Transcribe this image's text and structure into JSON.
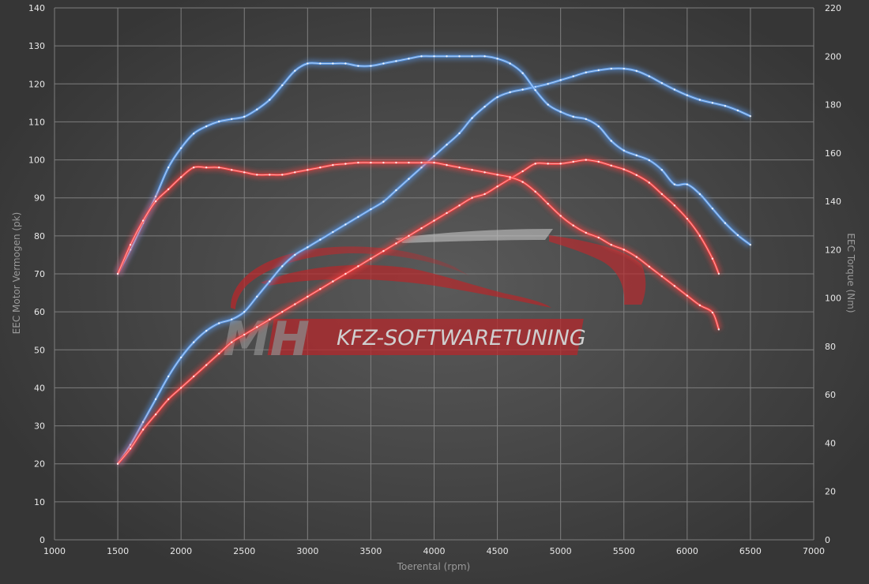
{
  "chart_data": {
    "type": "line",
    "xlabel": "Toerental (rpm)",
    "ylabel": "EEC Motor Vermogen (pk)",
    "y2label": "EEC Torque (Nm)",
    "xlim": [
      1000,
      7000
    ],
    "ylim": [
      0,
      140
    ],
    "y2lim": [
      0,
      220
    ],
    "x_ticks": [
      1000,
      1500,
      2000,
      2500,
      3000,
      3500,
      4000,
      4500,
      5000,
      5500,
      6000,
      6500,
      7000
    ],
    "y_ticks": [
      0,
      10,
      20,
      30,
      40,
      50,
      60,
      70,
      80,
      90,
      100,
      110,
      120,
      130,
      140
    ],
    "y2_ticks": [
      0,
      20,
      40,
      60,
      80,
      100,
      120,
      140,
      160,
      180,
      200,
      220
    ],
    "grid": true,
    "colors": {
      "tuned": "#5a9cf0",
      "stock": "#ff4040"
    },
    "watermark": {
      "mh": "MH",
      "text": "KFZ-SOFTWARETUNING"
    },
    "series": [
      {
        "axis": "left",
        "color": "tuned",
        "x": [
          1500,
          1600,
          1700,
          1800,
          1900,
          2000,
          2100,
          2200,
          2300,
          2400,
          2500,
          2600,
          2700,
          2800,
          2900,
          3000,
          3100,
          3200,
          3300,
          3400,
          3500,
          3600,
          3700,
          3800,
          3900,
          4000,
          4100,
          4200,
          4300,
          4400,
          4500,
          4600,
          4700,
          4800,
          4900,
          5000,
          5100,
          5200,
          5300,
          5400,
          5500,
          5600,
          5700,
          5800,
          5900,
          6000,
          6100,
          6200,
          6300,
          6400,
          6500
        ],
        "values": [
          20,
          25,
          31,
          37,
          43,
          48,
          52,
          55,
          57,
          58,
          60,
          64,
          68,
          72,
          75,
          77,
          79,
          81,
          83,
          85,
          87,
          89,
          92,
          95,
          98,
          101,
          104,
          107,
          111,
          114,
          116.5,
          117.8,
          118.5,
          119.2,
          120,
          121,
          122,
          123,
          123.6,
          124,
          124,
          123.4,
          122,
          120.2,
          118.5,
          117,
          115.8,
          115,
          114.2,
          113,
          111.5
        ]
      },
      {
        "axis": "right",
        "color": "tuned",
        "x": [
          1500,
          1600,
          1700,
          1800,
          1900,
          2000,
          2100,
          2200,
          2300,
          2400,
          2500,
          2600,
          2700,
          2800,
          2900,
          3000,
          3100,
          3200,
          3300,
          3400,
          3500,
          3600,
          3700,
          3800,
          3900,
          4000,
          4100,
          4200,
          4300,
          4400,
          4500,
          4600,
          4700,
          4800,
          4900,
          5000,
          5100,
          5200,
          5300,
          5400,
          5500,
          5600,
          5700,
          5800,
          5900,
          6000,
          6100,
          6200,
          6300,
          6400,
          6500
        ],
        "values": [
          110,
          120,
          131,
          142,
          154,
          162,
          168,
          171,
          173,
          174,
          175,
          178,
          182,
          188,
          194,
          197,
          197,
          197,
          197,
          196,
          196,
          197,
          198,
          199,
          200,
          200,
          200,
          200,
          200,
          200,
          199,
          197,
          193,
          186,
          180,
          177,
          175,
          174,
          171,
          165,
          161,
          159,
          157,
          153,
          147,
          147,
          143,
          137,
          131,
          126,
          122
        ]
      },
      {
        "axis": "left",
        "color": "stock",
        "x": [
          1500,
          1600,
          1700,
          1800,
          1900,
          2000,
          2100,
          2200,
          2300,
          2400,
          2500,
          2600,
          2700,
          2800,
          2900,
          3000,
          3100,
          3200,
          3300,
          3400,
          3500,
          3600,
          3700,
          3800,
          3900,
          4000,
          4100,
          4200,
          4300,
          4400,
          4500,
          4600,
          4700,
          4800,
          4900,
          5000,
          5100,
          5200,
          5300,
          5400,
          5500,
          5600,
          5700,
          5800,
          5900,
          6000,
          6100,
          6200,
          6250
        ],
        "values": [
          20,
          24,
          29,
          33,
          37,
          40,
          43,
          46,
          49,
          52,
          54,
          56,
          58,
          60,
          62,
          64,
          66,
          68,
          70,
          72,
          74,
          76,
          78,
          80,
          82,
          84,
          86,
          88,
          90,
          91,
          93,
          95,
          97,
          99,
          99,
          99,
          99.5,
          100,
          99.5,
          98.5,
          97.5,
          96,
          94,
          91,
          88,
          84.5,
          80,
          74,
          70
        ]
      },
      {
        "axis": "right",
        "color": "stock",
        "x": [
          1500,
          1600,
          1700,
          1800,
          1900,
          2000,
          2100,
          2200,
          2300,
          2400,
          2500,
          2600,
          2700,
          2800,
          2900,
          3000,
          3100,
          3200,
          3300,
          3400,
          3500,
          3600,
          3700,
          3800,
          3900,
          4000,
          4100,
          4200,
          4300,
          4400,
          4500,
          4600,
          4700,
          4800,
          4900,
          5000,
          5100,
          5200,
          5300,
          5400,
          5500,
          5600,
          5700,
          5800,
          5900,
          6000,
          6100,
          6200,
          6250
        ],
        "values": [
          110,
          122,
          132,
          140,
          145,
          150,
          154,
          154,
          154,
          153,
          152,
          151,
          151,
          151,
          152,
          153,
          154,
          155,
          155.5,
          156,
          156,
          156,
          156,
          156,
          156,
          156,
          155,
          154,
          153,
          152,
          151,
          150,
          148,
          144,
          139,
          134,
          130,
          127,
          125,
          122,
          120,
          117,
          113,
          109,
          105,
          101,
          97,
          94,
          87
        ]
      }
    ]
  }
}
